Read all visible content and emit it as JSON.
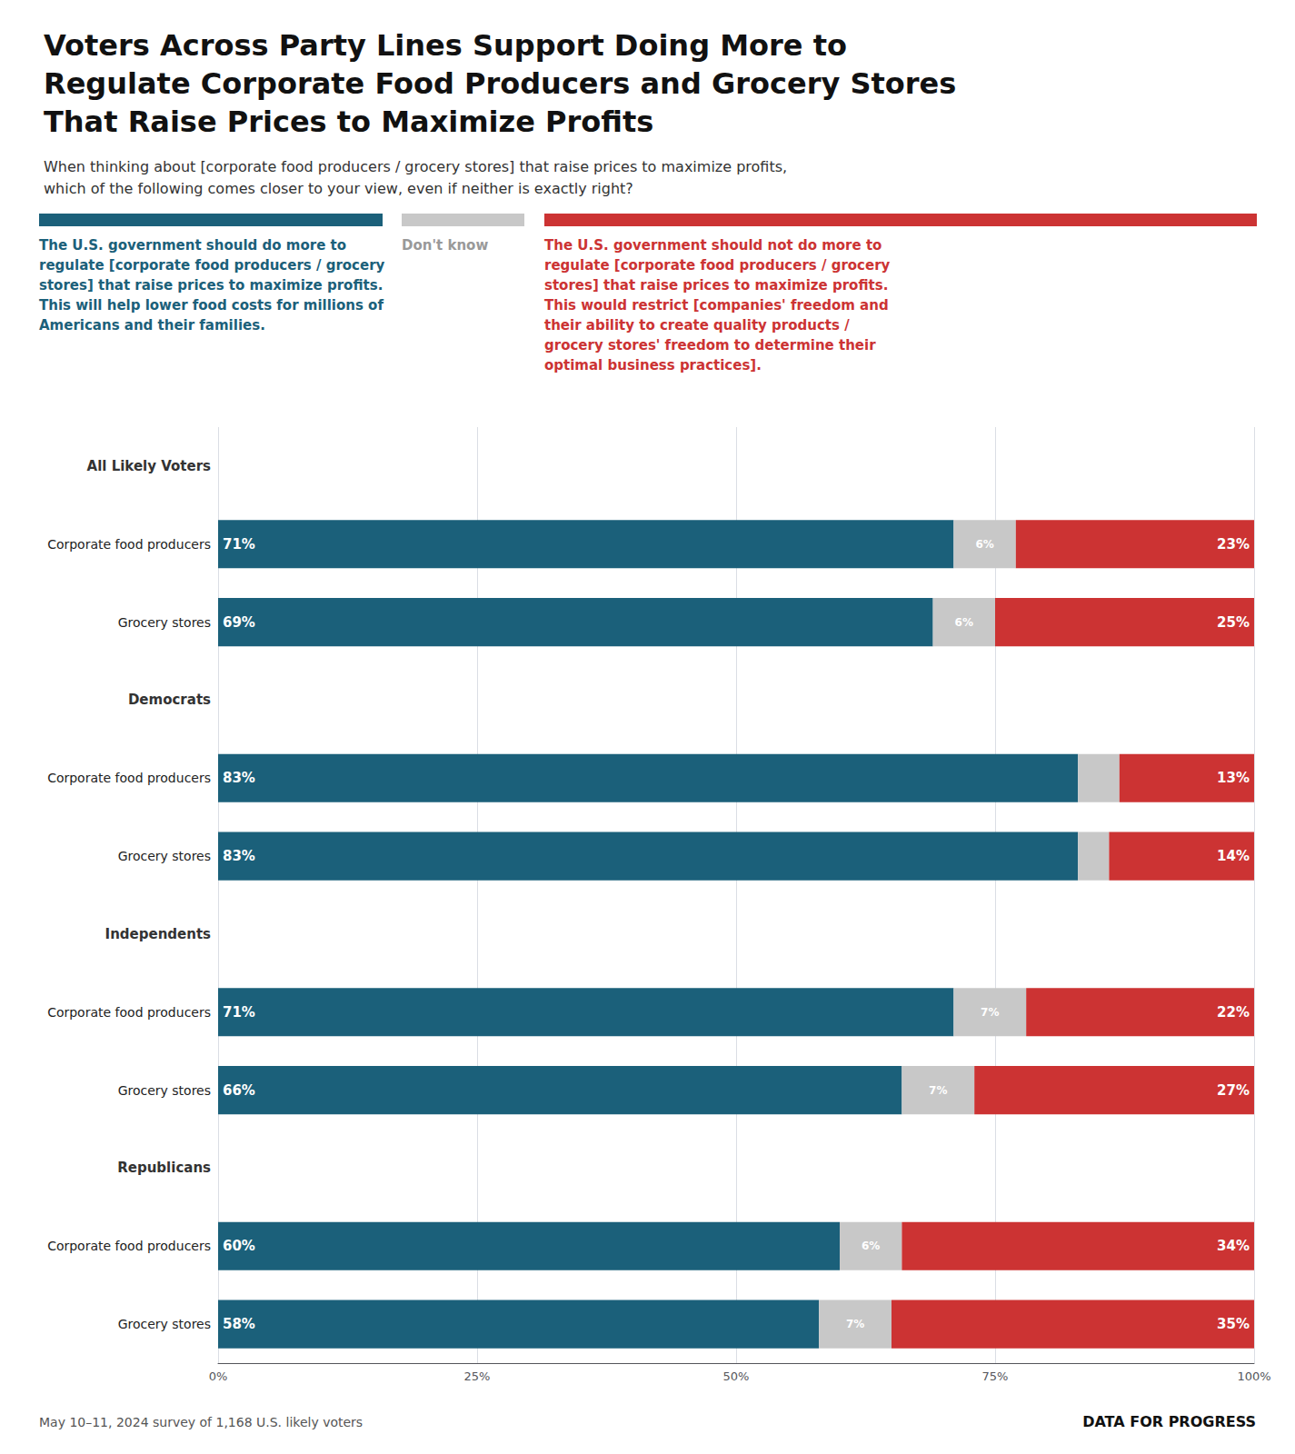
{
  "chart_data": {
    "type": "bar",
    "orientation": "horizontal",
    "stacked": true,
    "data_labels": true,
    "grid": true,
    "legend": "top",
    "title": "Voters Across Party Lines Support Doing More to\nRegulate Corporate Food Producers and Grocery Stores\nThat Raise Prices to Maximize Profits",
    "subtitle": "When thinking about [corporate food producers / grocery stores] that raise prices to maximize profits,\nwhich of the following comes closer to your view, even if neither is exactly right?",
    "annotations": [
      "May 10–11, 2024 survey of 1,168 U.S. likely voters",
      "DATA FOR PROGRESS"
    ],
    "categories": [
      "All Likely Voters",
      "Corporate food producers",
      "Grocery stores",
      "Democrats",
      "Corporate food producers",
      "Grocery stores",
      "Independents",
      "Corporate food producers",
      "Grocery stores",
      "Republicans",
      "Corporate food producers",
      "Grocery stores"
    ],
    "series": [
      {
        "name": "The U.S. government should do more to\nregulate [corporate food producers / grocery\nstores] that raise prices to maximize profits.\nThis will help lower food costs for millions of\nAmericans and their families.",
        "color": "#1B607A",
        "values": [
          null,
          71,
          69,
          null,
          83,
          83,
          null,
          71,
          66,
          null,
          60,
          58
        ],
        "value_labels": [
          null,
          "71%",
          "69%",
          null,
          "83%",
          "83%",
          null,
          "71%",
          "66%",
          null,
          "60%",
          "58%"
        ]
      },
      {
        "name": "Don't know",
        "color": "#C8C8C8",
        "values": [
          null,
          6,
          6,
          null,
          4,
          3,
          null,
          7,
          7,
          null,
          6,
          7
        ],
        "value_labels": [
          null,
          "6%",
          "6%",
          null,
          null,
          null,
          null,
          "7%",
          "7%",
          null,
          "6%",
          "7%"
        ]
      },
      {
        "name": "The U.S. government should not do more to\nregulate [corporate food producers / grocery\nstores] that raise prices to maximize profits.\nThis would restrict [companies' freedom and\ntheir ability to create quality products /\ngrocery stores' freedom to determine their\noptimal business practices].",
        "color": "#CC3333",
        "values": [
          null,
          23,
          25,
          null,
          13,
          14,
          null,
          22,
          27,
          null,
          34,
          35
        ],
        "value_labels": [
          null,
          "23%",
          "25%",
          null,
          "13%",
          "14%",
          null,
          "22%",
          "27%",
          null,
          "34%",
          "35%"
        ]
      }
    ],
    "xlim": [
      0,
      100
    ],
    "xticks": [
      {
        "value": 0,
        "label": "0%"
      },
      {
        "value": 25,
        "label": "25%"
      },
      {
        "value": 50,
        "label": "50%"
      },
      {
        "value": 75,
        "label": "75%"
      },
      {
        "value": 100,
        "label": "100%"
      }
    ]
  }
}
